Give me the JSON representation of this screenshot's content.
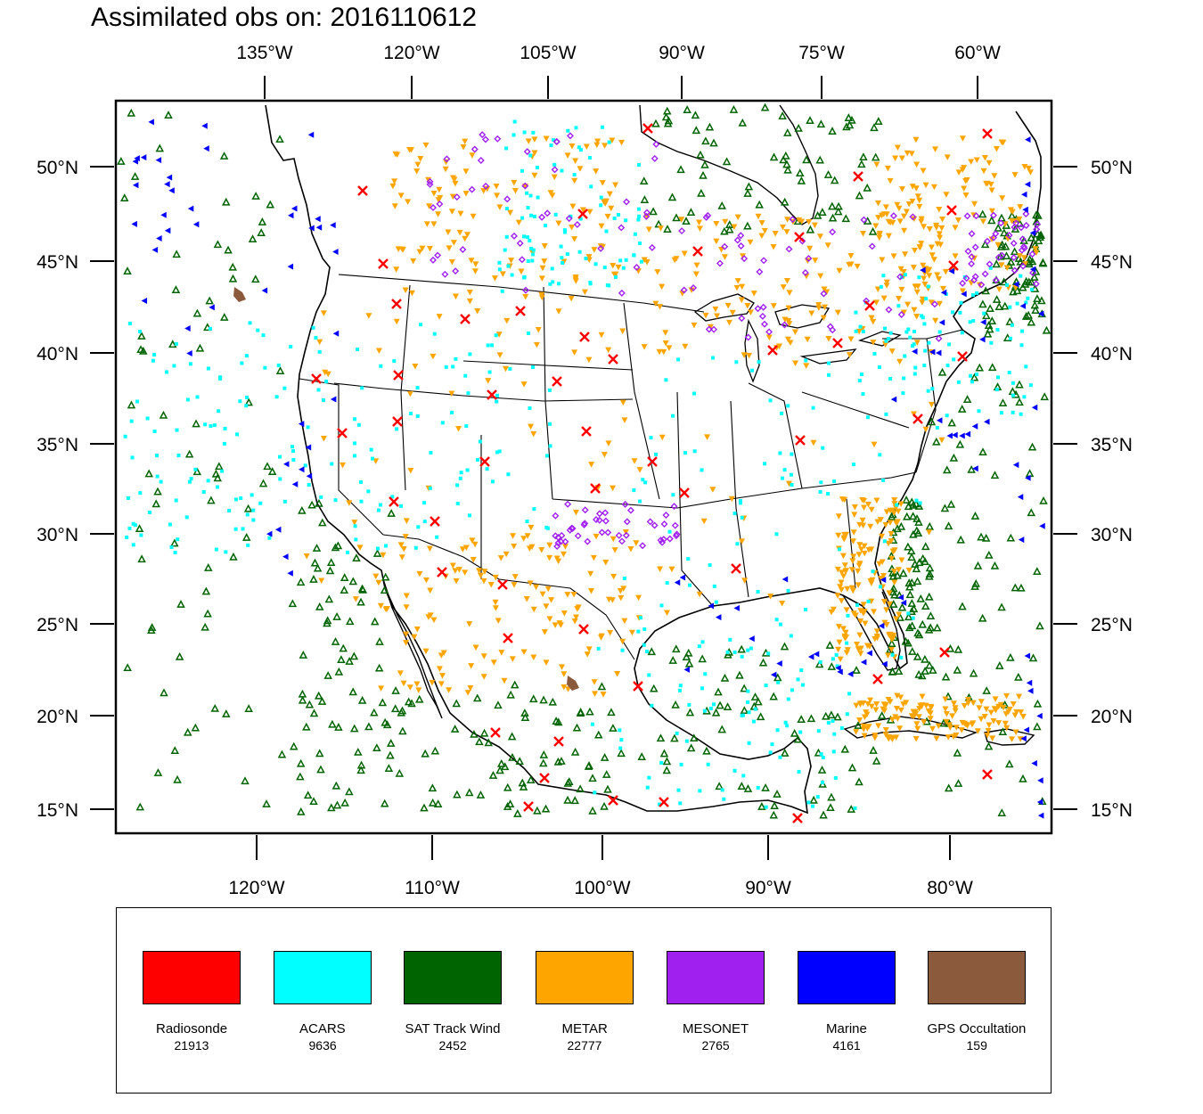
{
  "title": "Assimilated obs on: 2016110612",
  "map": {
    "top_axis_labels": [
      "135°W",
      "120°W",
      "105°W",
      "90°W",
      "75°W",
      "60°W"
    ],
    "bottom_axis_labels": [
      "120°W",
      "110°W",
      "100°W",
      "90°W",
      "80°W"
    ],
    "left_axis_labels": [
      "50°N",
      "45°N",
      "40°N",
      "35°N",
      "30°N",
      "25°N",
      "20°N",
      "15°N"
    ],
    "right_axis_labels": [
      "50°N",
      "45°N",
      "40°N",
      "35°N",
      "30°N",
      "25°N",
      "20°N",
      "15°N"
    ]
  },
  "legend": [
    {
      "name": "Radiosonde",
      "count": "21913",
      "color": "#ff0000",
      "symbol": "x"
    },
    {
      "name": "ACARS",
      "count": "9636",
      "color": "#00ffff",
      "symbol": "dot"
    },
    {
      "name": "SAT Track Wind",
      "count": "2452",
      "color": "#006400",
      "symbol": "triangle-up"
    },
    {
      "name": "METAR",
      "count": "22777",
      "color": "#ffa500",
      "symbol": "triangle-down"
    },
    {
      "name": "MESONET",
      "count": "2765",
      "color": "#a020f0",
      "symbol": "diamond"
    },
    {
      "name": "Marine",
      "count": "4161",
      "color": "#0000ff",
      "symbol": "triangle-left"
    },
    {
      "name": "GPS Occultation",
      "count": "159",
      "color": "#8b5a3c",
      "symbol": "blob"
    }
  ]
}
